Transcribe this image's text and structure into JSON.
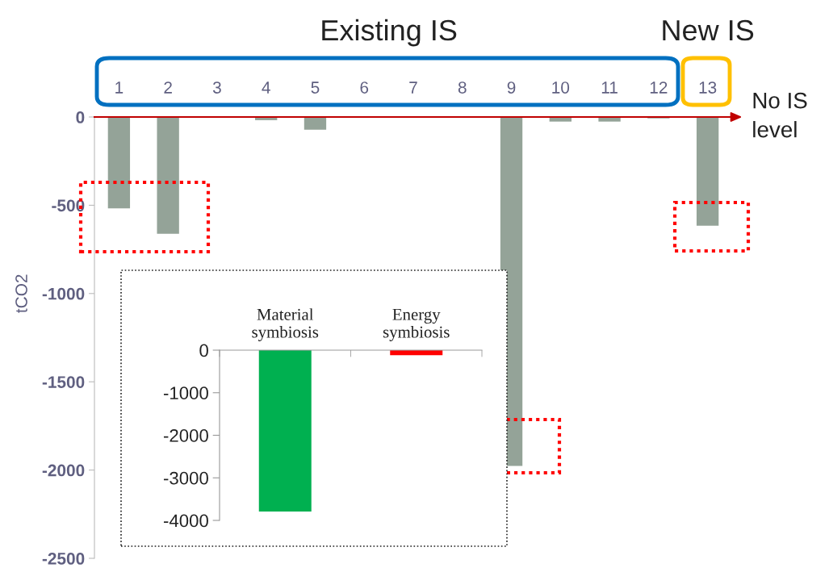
{
  "chart_data": [
    {
      "type": "bar",
      "ylabel": "tCO2",
      "categories": [
        "1",
        "2",
        "3",
        "4",
        "5",
        "6",
        "7",
        "8",
        "9",
        "10",
        "11",
        "12",
        "13"
      ],
      "values": [
        -518,
        -662,
        0,
        -18,
        -72,
        0,
        0,
        0,
        -1977,
        -26,
        -26,
        -8,
        -616
      ],
      "color": "#94a398",
      "ylim": [
        -2500,
        0
      ],
      "yticks": [
        -2500,
        -2000,
        -1500,
        -1000,
        -500,
        0
      ],
      "annotations": [
        "Existing IS",
        "New IS",
        "No IS level"
      ],
      "grid": false
    },
    {
      "type": "bar",
      "categories": [
        "Material symbiosis",
        "Energy symbiosis"
      ],
      "values": [
        -3790,
        -120
      ],
      "colors": [
        "#00b050",
        "#ff0000"
      ],
      "ylim": [
        -4000,
        0
      ],
      "yticks": [
        -4000,
        -3000,
        -2000,
        -1000,
        0
      ],
      "grid": false
    }
  ]
}
